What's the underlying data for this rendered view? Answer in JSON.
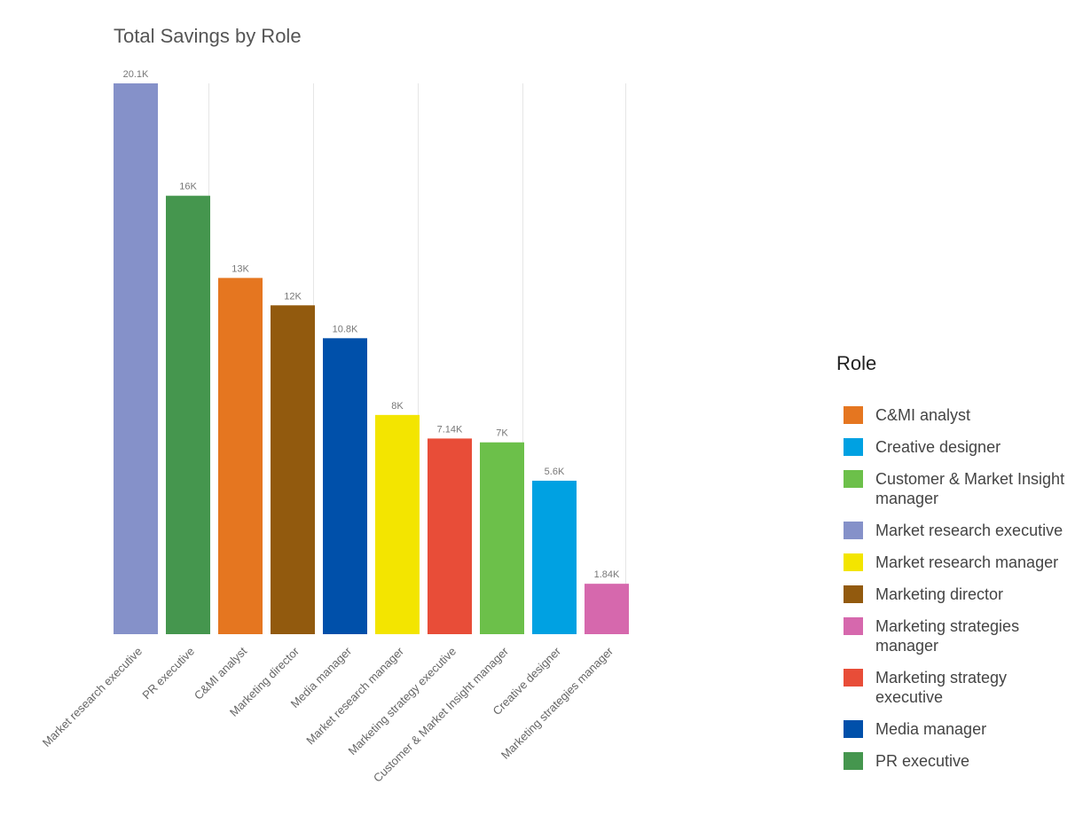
{
  "chart_data": {
    "type": "bar",
    "title": "Total Savings by Role",
    "xlabel": "",
    "ylabel": "",
    "ylim": [
      0,
      20100
    ],
    "grid": "vertical",
    "categories": [
      "Market research executive",
      "PR executive",
      "C&MI analyst",
      "Marketing director",
      "Media manager",
      "Market research manager",
      "Marketing strategy executive",
      "Customer & Market Insight manager",
      "Creative designer",
      "Marketing strategies manager"
    ],
    "values": [
      20100,
      16000,
      13000,
      12000,
      10800,
      8000,
      7140,
      7000,
      5600,
      1840
    ],
    "data_labels": [
      "20.1K",
      "16K",
      "13K",
      "12K",
      "10.8K",
      "8K",
      "7.14K",
      "7K",
      "5.6K",
      "1.84K"
    ],
    "colors": [
      "#8591c9",
      "#45964e",
      "#e57620",
      "#925a0e",
      "#0050aa",
      "#f3e500",
      "#e84d38",
      "#6cc04a",
      "#00a1e2",
      "#d668ad"
    ],
    "legend": {
      "title": "Role",
      "placement": "right",
      "items": [
        {
          "label": "C&MI analyst",
          "color": "#e57620"
        },
        {
          "label": "Creative designer",
          "color": "#00a1e2"
        },
        {
          "label": "Customer & Market Insight manager",
          "color": "#6cc04a"
        },
        {
          "label": "Market research executive",
          "color": "#8591c9"
        },
        {
          "label": "Market research manager",
          "color": "#f3e500"
        },
        {
          "label": "Marketing director",
          "color": "#925a0e"
        },
        {
          "label": "Marketing strategies manager",
          "color": "#d668ad"
        },
        {
          "label": "Marketing strategy executive",
          "color": "#e84d38"
        },
        {
          "label": "Media manager",
          "color": "#0050aa"
        },
        {
          "label": "PR executive",
          "color": "#45964e"
        }
      ]
    }
  }
}
